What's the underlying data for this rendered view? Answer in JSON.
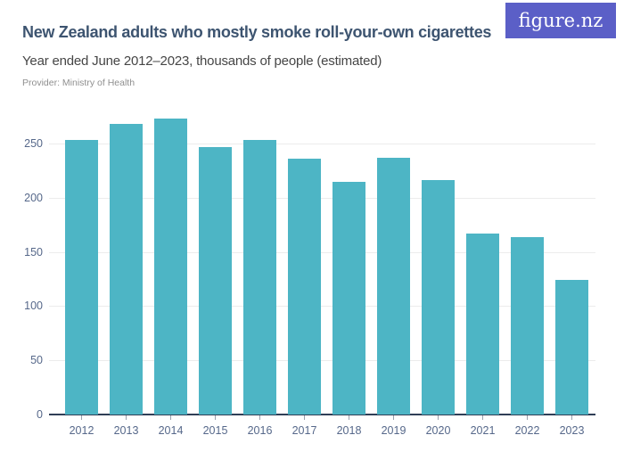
{
  "header": {
    "title": "New Zealand adults who mostly smoke roll-your-own cigarettes",
    "subtitle": "Year ended June 2012–2023, thousands of people (estimated)",
    "provider": "Provider: Ministry of Health",
    "logo_text": "figure.nz"
  },
  "colors": {
    "bar": "#4db5c5",
    "logo_bg": "#5b5fc7",
    "title": "#3d5470",
    "subtitle": "#464646",
    "provider": "#8f8f8f",
    "axis_label": "#56688a",
    "axis_line": "#2f3e56",
    "gridline": "#ececec",
    "tick": "#9aa0ad"
  },
  "chart_data": {
    "type": "bar",
    "title": "New Zealand adults who mostly smoke roll-your-own cigarettes",
    "subtitle": "Year ended June 2012–2023, thousands of people (estimated)",
    "provider": "Provider: Ministry of Health",
    "categories": [
      "2012",
      "2013",
      "2014",
      "2015",
      "2016",
      "2017",
      "2018",
      "2019",
      "2020",
      "2021",
      "2022",
      "2023"
    ],
    "values": [
      253,
      268,
      273,
      247,
      253,
      236,
      215,
      237,
      216,
      167,
      164,
      124
    ],
    "series_name": "Adults who mostly smoke roll-your-own cigarettes (thousands of people)",
    "xlabel": "",
    "ylabel": "",
    "ylim": [
      0,
      280
    ],
    "yticks": [
      0,
      50,
      100,
      150,
      200,
      250
    ],
    "grid": true,
    "legend": false
  }
}
